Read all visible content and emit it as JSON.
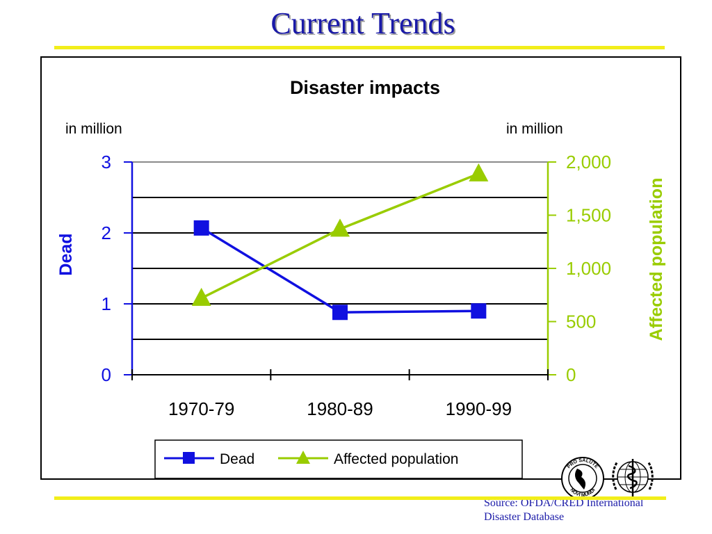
{
  "slide": {
    "title": "Current Trends",
    "source_line1": "Source: OFDA/CRED International",
    "source_line2": "Disaster Database"
  },
  "logos": {
    "paho_text_top": "PRO SALUTE",
    "paho_text_bottom": "NOVI MUNDI"
  },
  "colors": {
    "title": "#1a1aa8",
    "rule": "#f2ee1a",
    "dead": "#1010e0",
    "affected": "#99cc00",
    "grid": "#000000",
    "source_text": "#1a1aa8"
  },
  "chart_data": {
    "type": "line",
    "title": "Disaster impacts",
    "categories": [
      "1970-79",
      "1980-89",
      "1990-99"
    ],
    "y_left": {
      "label": "Dead",
      "unit_label": "in million",
      "range": [
        0,
        3
      ],
      "ticks": [
        "0",
        "1",
        "2",
        "3"
      ]
    },
    "y_right": {
      "label": "Affected population",
      "unit_label": "in million",
      "range": [
        0,
        2000
      ],
      "ticks": [
        "0",
        "500",
        "1,000",
        "1,500",
        "2,000"
      ]
    },
    "series": [
      {
        "name": "Dead",
        "axis": "left",
        "marker": "square",
        "values": [
          2.07,
          0.88,
          0.9
        ]
      },
      {
        "name": "Affected population",
        "axis": "right",
        "marker": "triangle",
        "values": [
          720,
          1370,
          1890
        ]
      }
    ],
    "gridlines": [
      0.5,
      1,
      1.5,
      2,
      2.5,
      3
    ],
    "legend_position": "bottom"
  }
}
